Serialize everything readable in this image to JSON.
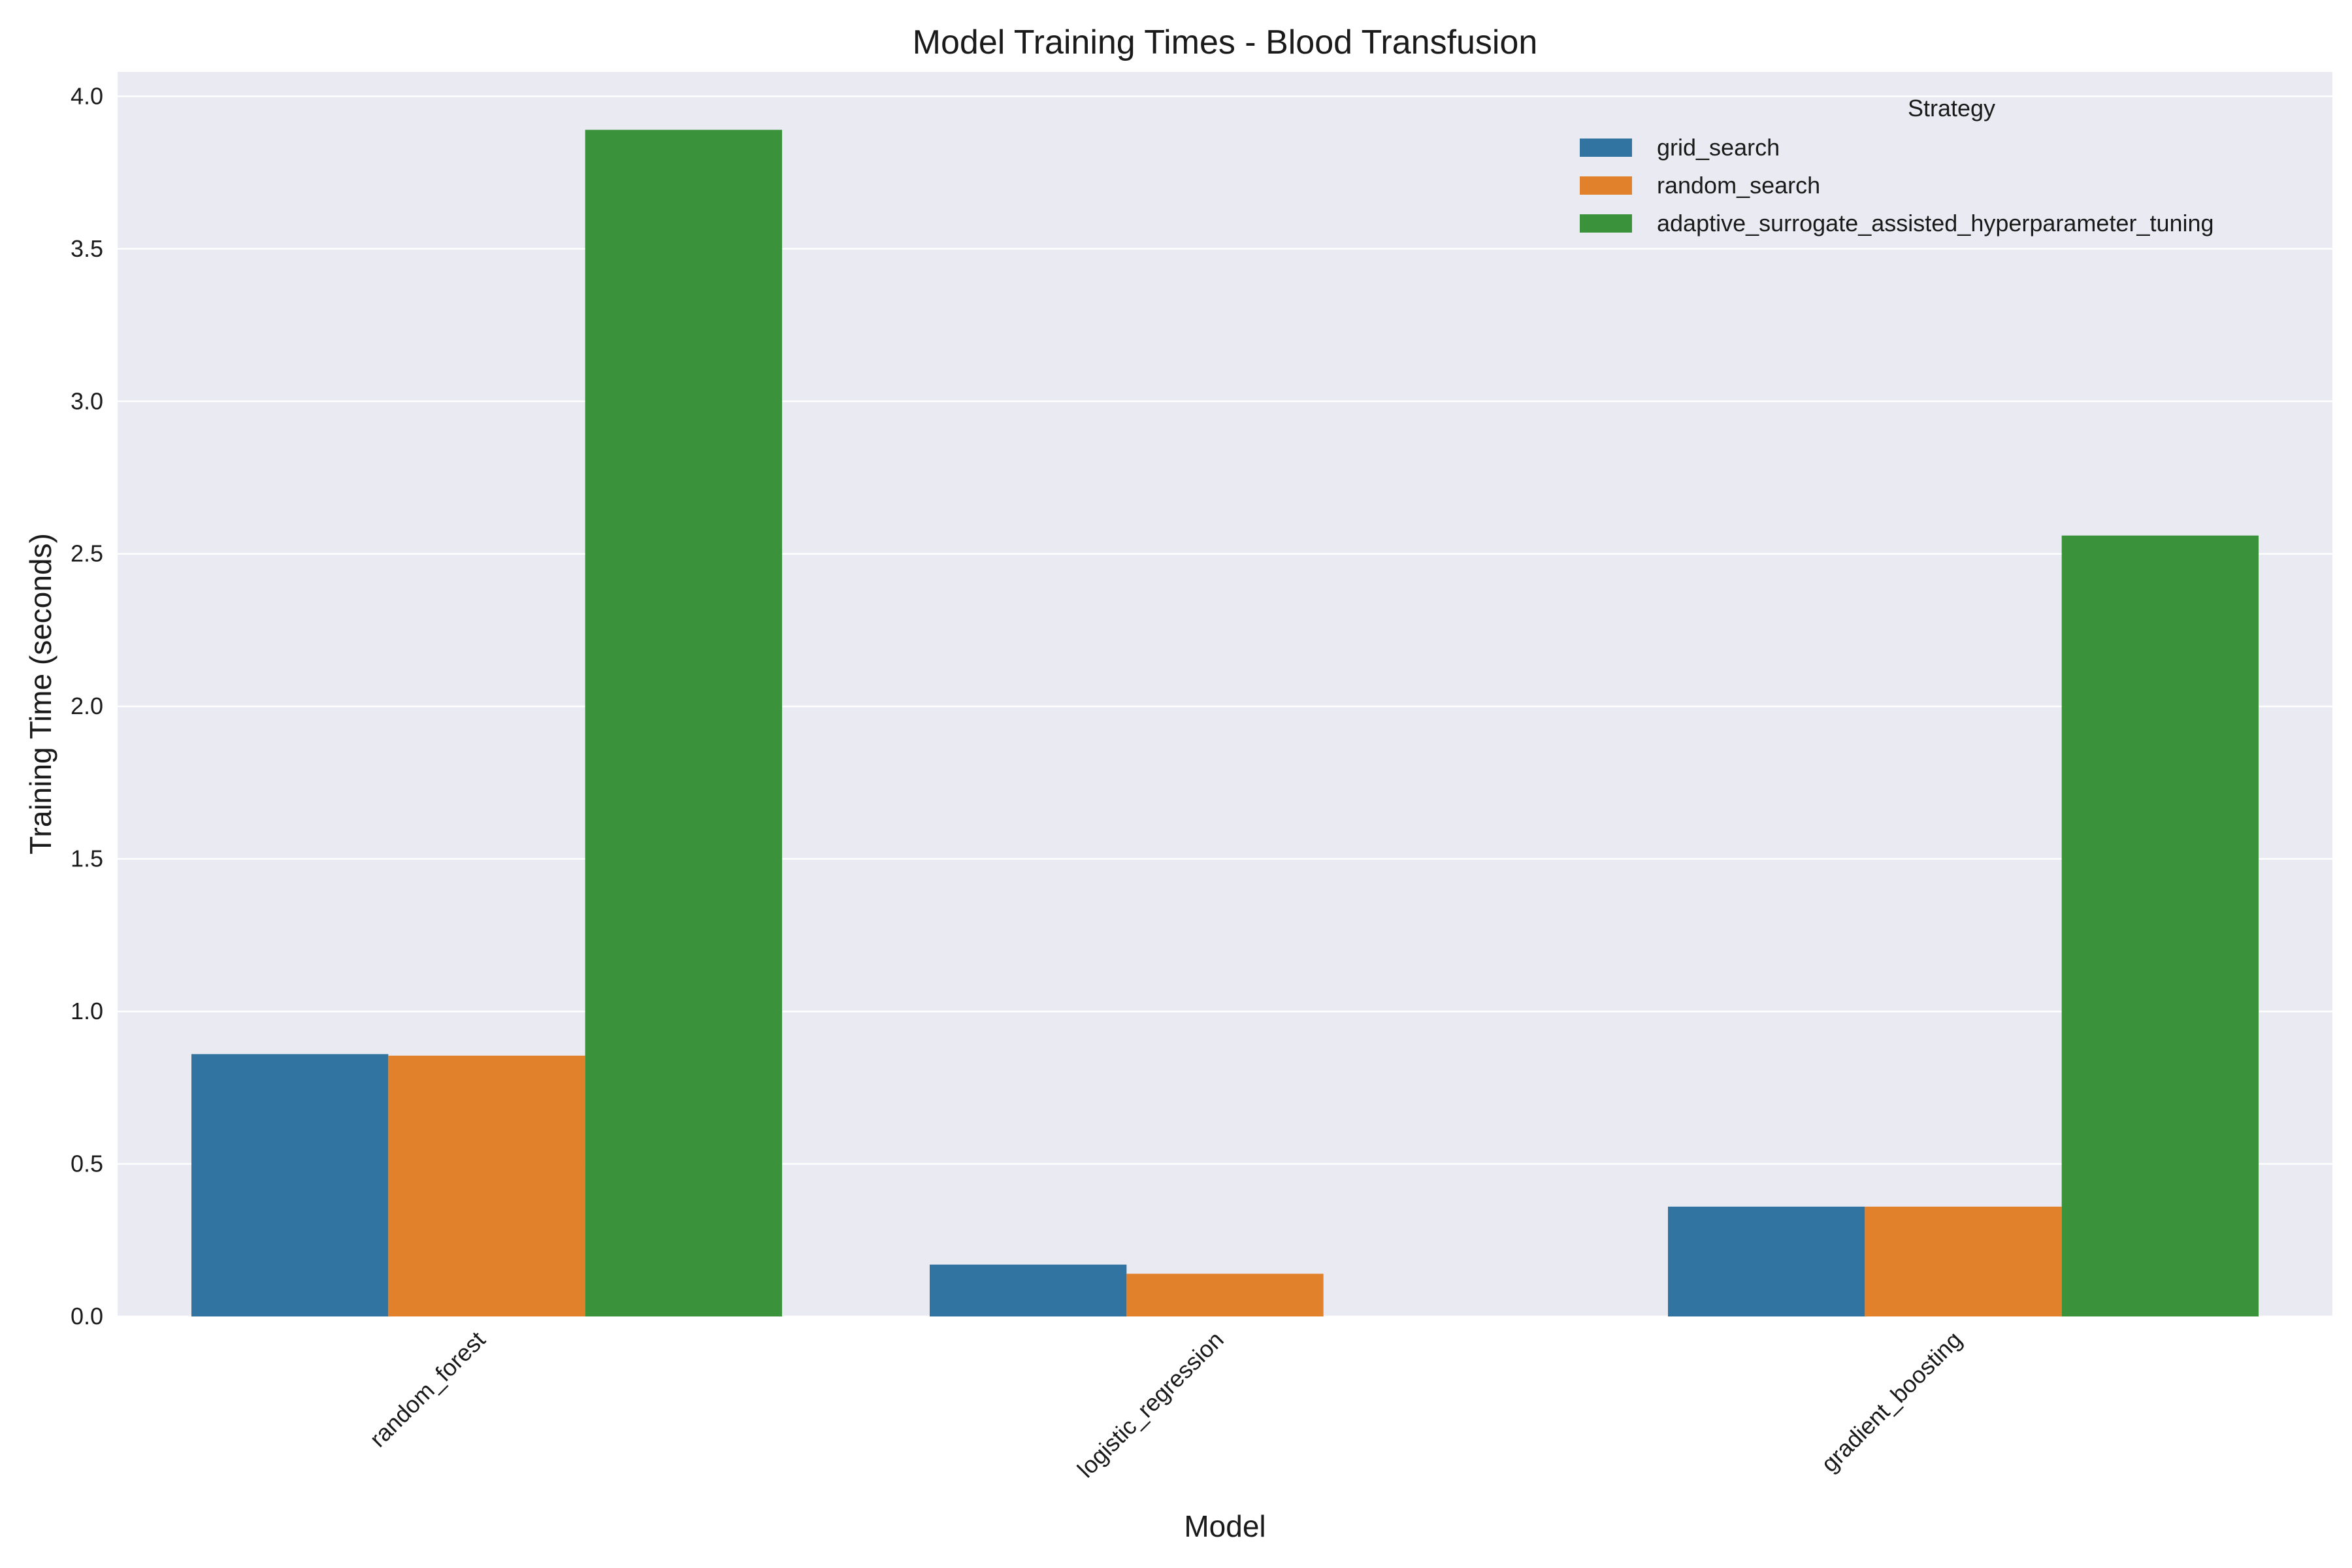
{
  "chart_data": {
    "type": "bar",
    "title": "Model Training Times - Blood Transfusion",
    "xlabel": "Model",
    "ylabel": "Training Time (seconds)",
    "categories": [
      "random_forest",
      "logistic_regression",
      "gradient_boosting"
    ],
    "ylim": [
      0,
      4.08
    ],
    "yticks": [
      "0.0",
      "0.5",
      "1.0",
      "1.5",
      "2.0",
      "2.5",
      "3.0",
      "3.5",
      "4.0"
    ],
    "grid": true,
    "legend": {
      "title": "Strategy",
      "placement": "top-right"
    },
    "series": [
      {
        "name": "grid_search",
        "color": "#3274a1",
        "values": [
          0.86,
          0.17,
          0.36
        ]
      },
      {
        "name": "random_search",
        "color": "#e1812c",
        "values": [
          0.855,
          0.14,
          0.36
        ]
      },
      {
        "name": "adaptive_surrogate_assisted_hyperparameter_tuning",
        "color": "#3a923a",
        "values": [
          3.89,
          null,
          2.56
        ]
      }
    ]
  },
  "colors": {
    "plot_background": "#eaeaf2",
    "grid": "#ffffff"
  }
}
